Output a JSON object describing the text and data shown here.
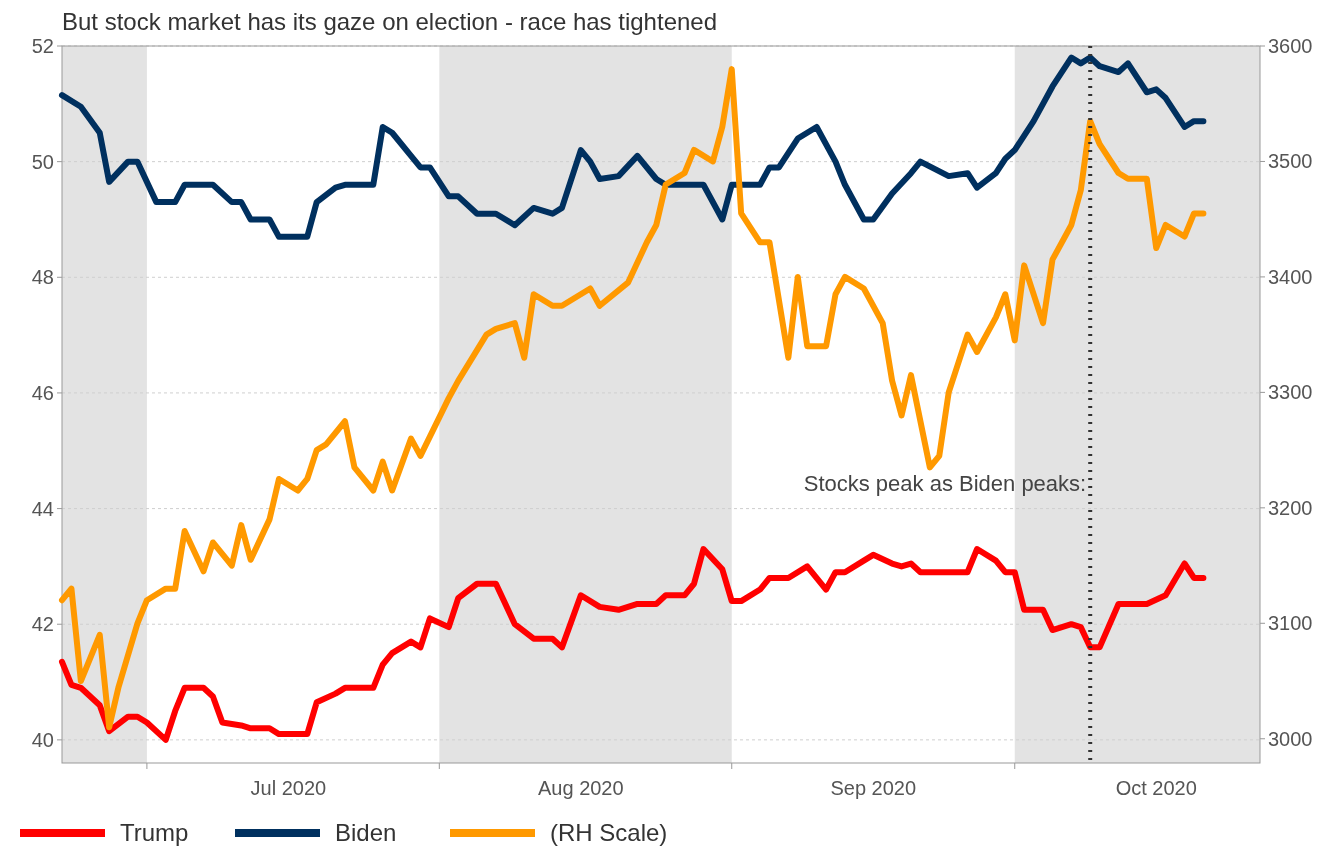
{
  "chart_data": {
    "type": "line",
    "title": "But stock market has its gaze on election - race has tightened",
    "xlim": [
      "2020-06-22",
      "2020-10-27"
    ],
    "xticks": [
      {
        "value": "2020-07-01",
        "label": null
      },
      {
        "value": "2020-07-16",
        "label": "Jul 2020"
      },
      {
        "value": "2020-08-01",
        "label": null
      },
      {
        "value": "2020-08-16",
        "label": "Aug 2020"
      },
      {
        "value": "2020-09-01",
        "label": null
      },
      {
        "value": "2020-09-16",
        "label": "Sep 2020"
      },
      {
        "value": "2020-10-01",
        "label": null
      },
      {
        "value": "2020-10-16",
        "label": "Oct 2020"
      }
    ],
    "ylim": [
      39.6,
      52
    ],
    "yticks": [
      40,
      42,
      44,
      46,
      48,
      50,
      52
    ],
    "y2lim": [
      2979,
      3600
    ],
    "y2ticks": [
      3000,
      3100,
      3200,
      3300,
      3400,
      3500,
      3600
    ],
    "grid": "y",
    "legend": "bottom",
    "line_style": "solid",
    "marker": "none",
    "bands": [
      {
        "axis": "x",
        "from": "2020-06-22",
        "to": "2020-07-01",
        "color": "#e3e3e3"
      },
      {
        "axis": "x",
        "from": "2020-08-01",
        "to": "2020-09-01",
        "color": "#e3e3e3"
      },
      {
        "axis": "x",
        "from": "2020-10-01",
        "to": "2020-10-27",
        "color": "#e3e3e3"
      }
    ],
    "ref_lines": [
      {
        "axis": "x",
        "value": "2020-10-09",
        "color": "#333333",
        "line_style": "dotted"
      }
    ],
    "annotations": [
      {
        "text": "Stocks peak as Biden peaks:",
        "x": "2020-10-09",
        "y": 44.3
      }
    ],
    "series": [
      {
        "name": "Trump",
        "color": "#ff0000",
        "x": [
          "2020-06-22",
          "2020-06-23",
          "2020-06-24",
          "2020-06-26",
          "2020-06-27",
          "2020-06-29",
          "2020-06-30",
          "2020-07-01",
          "2020-07-03",
          "2020-07-04",
          "2020-07-05",
          "2020-07-07",
          "2020-07-08",
          "2020-07-09",
          "2020-07-11",
          "2020-07-12",
          "2020-07-14",
          "2020-07-15",
          "2020-07-18",
          "2020-07-19",
          "2020-07-21",
          "2020-07-22",
          "2020-07-25",
          "2020-07-26",
          "2020-07-27",
          "2020-07-29",
          "2020-07-30",
          "2020-07-31",
          "2020-08-02",
          "2020-08-03",
          "2020-08-05",
          "2020-08-07",
          "2020-08-09",
          "2020-08-11",
          "2020-08-13",
          "2020-08-14",
          "2020-08-16",
          "2020-08-18",
          "2020-08-20",
          "2020-08-22",
          "2020-08-24",
          "2020-08-25",
          "2020-08-27",
          "2020-08-28",
          "2020-08-29",
          "2020-08-31",
          "2020-09-01",
          "2020-09-02",
          "2020-09-04",
          "2020-09-05",
          "2020-09-07",
          "2020-09-09",
          "2020-09-11",
          "2020-09-12",
          "2020-09-13",
          "2020-09-15",
          "2020-09-16",
          "2020-09-18",
          "2020-09-19",
          "2020-09-20",
          "2020-09-21",
          "2020-09-26",
          "2020-09-27",
          "2020-09-29",
          "2020-09-30",
          "2020-10-01",
          "2020-10-02",
          "2020-10-04",
          "2020-10-05",
          "2020-10-07",
          "2020-10-08",
          "2020-10-09",
          "2020-10-10",
          "2020-10-12",
          "2020-10-15",
          "2020-10-17",
          "2020-10-19",
          "2020-10-20",
          "2020-10-21"
        ],
        "values": [
          41.35,
          40.95,
          40.9,
          40.6,
          40.15,
          40.4,
          40.4,
          40.3,
          40.0,
          40.5,
          40.9,
          40.9,
          40.75,
          40.3,
          40.25,
          40.2,
          40.2,
          40.1,
          40.1,
          40.65,
          40.8,
          40.9,
          40.9,
          41.3,
          41.5,
          41.7,
          41.6,
          42.1,
          41.95,
          42.45,
          42.7,
          42.7,
          42.0,
          41.75,
          41.75,
          41.6,
          42.5,
          42.3,
          42.25,
          42.35,
          42.35,
          42.5,
          42.5,
          42.7,
          43.3,
          42.95,
          42.4,
          42.4,
          42.6,
          42.8,
          42.8,
          43.0,
          42.6,
          42.9,
          42.9,
          43.1,
          43.2,
          43.05,
          43.0,
          43.05,
          42.9,
          42.9,
          43.3,
          43.1,
          42.9,
          42.9,
          42.25,
          42.25,
          41.9,
          42.0,
          41.95,
          41.6,
          41.6,
          42.35,
          42.35,
          42.5,
          43.05,
          42.8,
          42.8
        ]
      },
      {
        "name": "Biden",
        "color": "#00305f",
        "x": [
          "2020-06-22",
          "2020-06-24",
          "2020-06-26",
          "2020-06-27",
          "2020-06-29",
          "2020-06-30",
          "2020-07-02",
          "2020-07-04",
          "2020-07-05",
          "2020-07-08",
          "2020-07-10",
          "2020-07-11",
          "2020-07-12",
          "2020-07-14",
          "2020-07-15",
          "2020-07-18",
          "2020-07-19",
          "2020-07-21",
          "2020-07-22",
          "2020-07-25",
          "2020-07-26",
          "2020-07-27",
          "2020-07-29",
          "2020-07-30",
          "2020-07-31",
          "2020-08-02",
          "2020-08-03",
          "2020-08-05",
          "2020-08-07",
          "2020-08-09",
          "2020-08-11",
          "2020-08-13",
          "2020-08-14",
          "2020-08-16",
          "2020-08-17",
          "2020-08-18",
          "2020-08-20",
          "2020-08-22",
          "2020-08-24",
          "2020-08-25",
          "2020-08-29",
          "2020-08-31",
          "2020-09-01",
          "2020-09-04",
          "2020-09-05",
          "2020-09-06",
          "2020-09-08",
          "2020-09-10",
          "2020-09-12",
          "2020-09-13",
          "2020-09-15",
          "2020-09-16",
          "2020-09-18",
          "2020-09-20",
          "2020-09-21",
          "2020-09-24",
          "2020-09-26",
          "2020-09-27",
          "2020-09-29",
          "2020-09-30",
          "2020-10-01",
          "2020-10-03",
          "2020-10-05",
          "2020-10-07",
          "2020-10-08",
          "2020-10-09",
          "2020-10-10",
          "2020-10-12",
          "2020-10-13",
          "2020-10-15",
          "2020-10-16",
          "2020-10-17",
          "2020-10-19",
          "2020-10-20",
          "2020-10-21"
        ],
        "values": [
          51.15,
          50.95,
          50.5,
          49.65,
          50.0,
          50.0,
          49.3,
          49.3,
          49.6,
          49.6,
          49.3,
          49.3,
          49.0,
          49.0,
          48.7,
          48.7,
          49.3,
          49.55,
          49.6,
          49.6,
          50.6,
          50.5,
          50.1,
          49.9,
          49.9,
          49.4,
          49.4,
          49.1,
          49.1,
          48.9,
          49.2,
          49.1,
          49.2,
          50.2,
          50.0,
          49.7,
          49.75,
          50.1,
          49.7,
          49.6,
          49.6,
          49.0,
          49.6,
          49.6,
          49.9,
          49.9,
          50.4,
          50.6,
          50.0,
          49.6,
          49.0,
          49.0,
          49.45,
          49.8,
          50.0,
          49.75,
          49.8,
          49.55,
          49.8,
          50.05,
          50.2,
          50.7,
          51.3,
          51.8,
          51.7,
          51.8,
          51.65,
          51.55,
          51.7,
          51.2,
          51.25,
          51.1,
          50.6,
          50.7,
          50.7
        ]
      },
      {
        "name": "(RH Scale)",
        "color": "#ff9900",
        "axis": "y2",
        "x": [
          "2020-06-22",
          "2020-06-23",
          "2020-06-24",
          "2020-06-26",
          "2020-06-27",
          "2020-06-28",
          "2020-06-30",
          "2020-07-01",
          "2020-07-03",
          "2020-07-04",
          "2020-07-05",
          "2020-07-07",
          "2020-07-08",
          "2020-07-10",
          "2020-07-11",
          "2020-07-12",
          "2020-07-14",
          "2020-07-15",
          "2020-07-17",
          "2020-07-18",
          "2020-07-19",
          "2020-07-20",
          "2020-07-22",
          "2020-07-23",
          "2020-07-25",
          "2020-07-26",
          "2020-07-27",
          "2020-07-29",
          "2020-07-30",
          "2020-08-02",
          "2020-08-03",
          "2020-08-06",
          "2020-08-07",
          "2020-08-09",
          "2020-08-10",
          "2020-08-11",
          "2020-08-13",
          "2020-08-14",
          "2020-08-17",
          "2020-08-18",
          "2020-08-21",
          "2020-08-23",
          "2020-08-24",
          "2020-08-25",
          "2020-08-27",
          "2020-08-28",
          "2020-08-30",
          "2020-08-31",
          "2020-09-01",
          "2020-09-02",
          "2020-09-04",
          "2020-09-05",
          "2020-09-07",
          "2020-09-08",
          "2020-09-09",
          "2020-09-11",
          "2020-09-12",
          "2020-09-13",
          "2020-09-15",
          "2020-09-17",
          "2020-09-18",
          "2020-09-19",
          "2020-09-20",
          "2020-09-22",
          "2020-09-23",
          "2020-09-24",
          "2020-09-26",
          "2020-09-27",
          "2020-09-29",
          "2020-09-30",
          "2020-10-01",
          "2020-10-02",
          "2020-10-04",
          "2020-10-05",
          "2020-10-07",
          "2020-10-08",
          "2020-10-09",
          "2020-10-10",
          "2020-10-12",
          "2020-10-13",
          "2020-10-15",
          "2020-10-16",
          "2020-10-17",
          "2020-10-19",
          "2020-10-20",
          "2020-10-21"
        ],
        "values": [
          3120,
          3130,
          3050,
          3090,
          3010,
          3045,
          3100,
          3120,
          3130,
          3130,
          3180,
          3145,
          3170,
          3150,
          3185,
          3155,
          3190,
          3225,
          3215,
          3225,
          3250,
          3255,
          3275,
          3235,
          3215,
          3240,
          3215,
          3260,
          3245,
          3295,
          3310,
          3350,
          3355,
          3360,
          3330,
          3385,
          3375,
          3375,
          3390,
          3375,
          3395,
          3430,
          3445,
          3480,
          3490,
          3510,
          3500,
          3530,
          3580,
          3455,
          3430,
          3430,
          3330,
          3400,
          3340,
          3340,
          3385,
          3400,
          3390,
          3360,
          3310,
          3280,
          3315,
          3235,
          3245,
          3300,
          3350,
          3335,
          3365,
          3385,
          3345,
          3410,
          3360,
          3415,
          3445,
          3475,
          3535,
          3515,
          3490,
          3485,
          3485,
          3425,
          3445,
          3435,
          3455,
          3455
        ]
      }
    ]
  }
}
